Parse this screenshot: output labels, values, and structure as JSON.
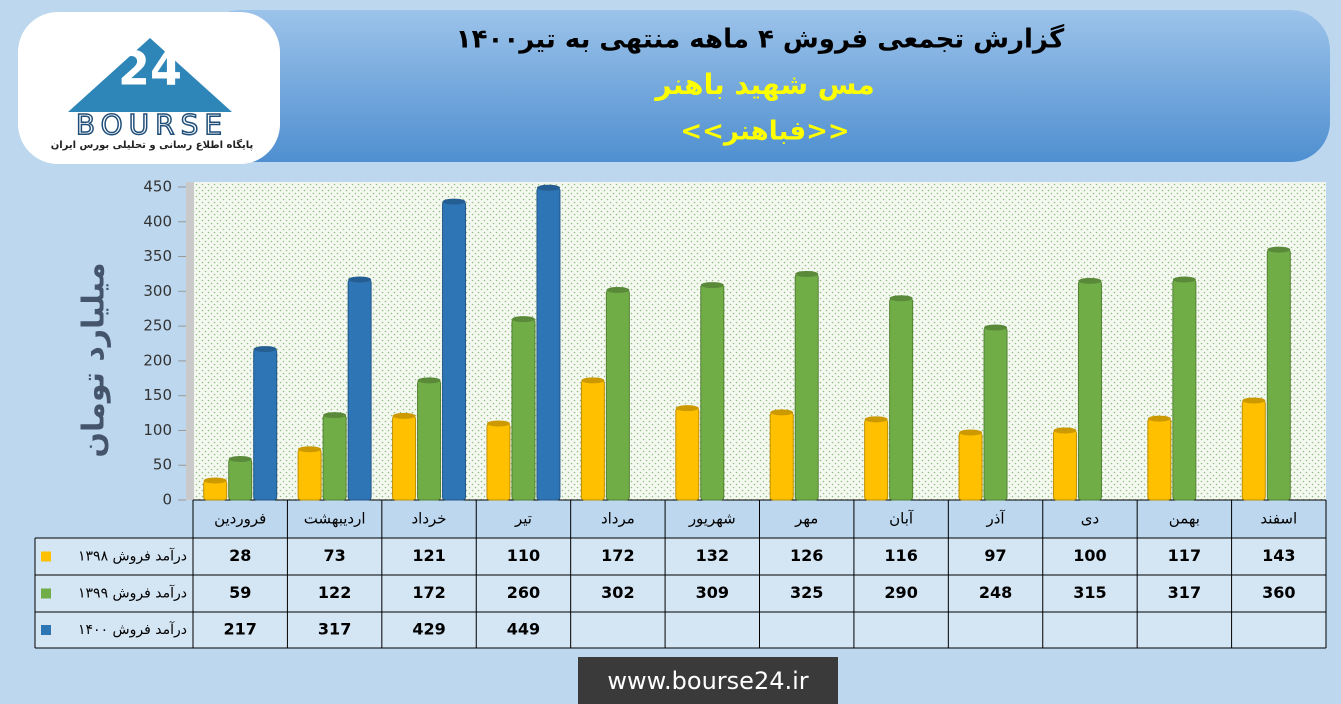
{
  "chart_data": {
    "type": "bar",
    "title": "گزارش تجمعی فروش ۴ ماهه منتهی به تیر۱۴۰۰",
    "subtitle": "مس شهید باهنر",
    "ticker": "<<فباهنر>>",
    "y_label": "میلیارد تومان",
    "categories": [
      "فروردین",
      "اردیبهشت",
      "خرداد",
      "تیر",
      "مرداد",
      "شهریور",
      "مهر",
      "آبان",
      "آذر",
      "دی",
      "بهمن",
      "اسفند"
    ],
    "series": [
      {
        "name": "درآمد فروش ۱۳۹۸",
        "color": "#ffc000",
        "values": [
          28,
          73,
          121,
          110,
          172,
          132,
          126,
          116,
          97,
          100,
          117,
          143
        ]
      },
      {
        "name": "درآمد فروش ۱۳۹۹",
        "color": "#70ad47",
        "values": [
          59,
          122,
          172,
          260,
          302,
          309,
          325,
          290,
          248,
          315,
          317,
          360
        ]
      },
      {
        "name": "درآمد فروش ۱۴۰۰",
        "color": "#2e75b6",
        "values": [
          217,
          317,
          429,
          449,
          null,
          null,
          null,
          null,
          null,
          null,
          null,
          null
        ]
      }
    ],
    "ylim": [
      0,
      450
    ],
    "yticks": [
      0,
      50,
      100,
      150,
      200,
      250,
      300,
      350,
      400,
      450
    ],
    "grid": false
  },
  "logo": {
    "text": "BOURSE",
    "tagline": "پایگاه اطلاع رسانی و تحلیلی بورس ایران"
  },
  "footer": "www.bourse24.ir"
}
